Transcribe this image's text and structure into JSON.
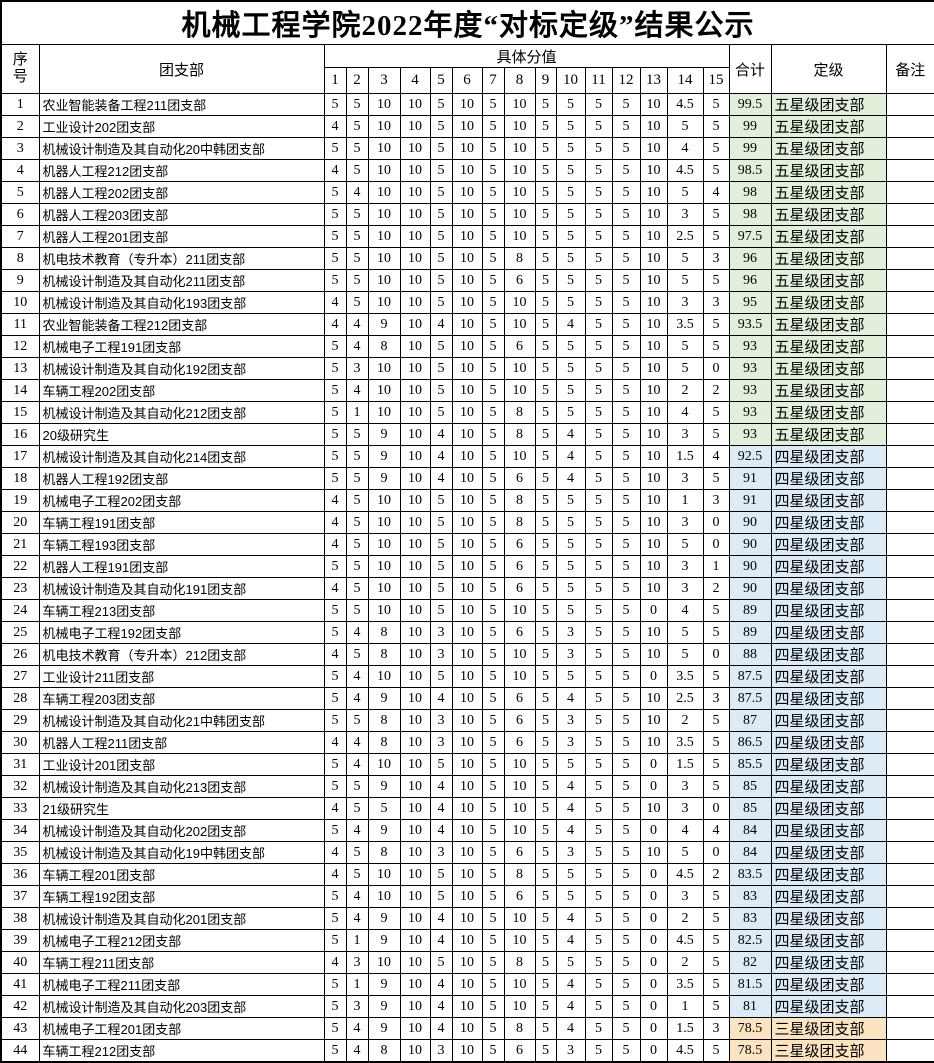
{
  "title": "机械工程学院2022年度“对标定级”结果公示",
  "table": {
    "headers": {
      "index": "序\n号",
      "branch": "团支部",
      "scores_group": "具体分值",
      "score_cols": [
        "1",
        "2",
        "3",
        "4",
        "5",
        "6",
        "7",
        "8",
        "9",
        "10",
        "11",
        "12",
        "13",
        "14",
        "15"
      ],
      "total": "合计",
      "rating": "定级",
      "remark": "备注"
    },
    "rating_colors": {
      "五星级团支部": "#e2efda",
      "四星级团支部": "#ddebf7",
      "三星级团支部": "#fce4c2"
    },
    "rows": [
      {
        "no": 1,
        "branch": "农业智能装备工程211团支部",
        "scores": [
          5,
          5,
          10,
          10,
          5,
          10,
          5,
          10,
          5,
          5,
          5,
          5,
          10,
          4.5,
          5
        ],
        "total": 99.5,
        "rating": "五星级团支部",
        "remark": ""
      },
      {
        "no": 2,
        "branch": "工业设计202团支部",
        "scores": [
          4,
          5,
          10,
          10,
          5,
          10,
          5,
          10,
          5,
          5,
          5,
          5,
          10,
          5,
          5
        ],
        "total": 99,
        "rating": "五星级团支部",
        "remark": ""
      },
      {
        "no": 3,
        "branch": "机械设计制造及其自动化20中韩团支部",
        "scores": [
          5,
          5,
          10,
          10,
          5,
          10,
          5,
          10,
          5,
          5,
          5,
          5,
          10,
          4,
          5
        ],
        "total": 99,
        "rating": "五星级团支部",
        "remark": ""
      },
      {
        "no": 4,
        "branch": "机器人工程212团支部",
        "scores": [
          4,
          5,
          10,
          10,
          5,
          10,
          5,
          10,
          5,
          5,
          5,
          5,
          10,
          4.5,
          5
        ],
        "total": 98.5,
        "rating": "五星级团支部",
        "remark": ""
      },
      {
        "no": 5,
        "branch": "机器人工程202团支部",
        "scores": [
          5,
          4,
          10,
          10,
          5,
          10,
          5,
          10,
          5,
          5,
          5,
          5,
          10,
          5,
          4
        ],
        "total": 98,
        "rating": "五星级团支部",
        "remark": ""
      },
      {
        "no": 6,
        "branch": "机器人工程203团支部",
        "scores": [
          5,
          5,
          10,
          10,
          5,
          10,
          5,
          10,
          5,
          5,
          5,
          5,
          10,
          3,
          5
        ],
        "total": 98,
        "rating": "五星级团支部",
        "remark": ""
      },
      {
        "no": 7,
        "branch": "机器人工程201团支部",
        "scores": [
          5,
          5,
          10,
          10,
          5,
          10,
          5,
          10,
          5,
          5,
          5,
          5,
          10,
          2.5,
          5
        ],
        "total": 97.5,
        "rating": "五星级团支部",
        "remark": ""
      },
      {
        "no": 8,
        "branch": "机电技术教育（专升本）211团支部",
        "scores": [
          5,
          5,
          10,
          10,
          5,
          10,
          5,
          8,
          5,
          5,
          5,
          5,
          10,
          5,
          3
        ],
        "total": 96,
        "rating": "五星级团支部",
        "remark": ""
      },
      {
        "no": 9,
        "branch": "机械设计制造及其自动化211团支部",
        "scores": [
          5,
          5,
          10,
          10,
          5,
          10,
          5,
          6,
          5,
          5,
          5,
          5,
          10,
          5,
          5
        ],
        "total": 96,
        "rating": "五星级团支部",
        "remark": ""
      },
      {
        "no": 10,
        "branch": "机械设计制造及其自动化193团支部",
        "scores": [
          4,
          5,
          10,
          10,
          5,
          10,
          5,
          10,
          5,
          5,
          5,
          5,
          10,
          3,
          3
        ],
        "total": 95,
        "rating": "五星级团支部",
        "remark": ""
      },
      {
        "no": 11,
        "branch": "农业智能装备工程212团支部",
        "scores": [
          4,
          4,
          9,
          10,
          4,
          10,
          5,
          10,
          5,
          4,
          5,
          5,
          10,
          3.5,
          5
        ],
        "total": 93.5,
        "rating": "五星级团支部",
        "remark": ""
      },
      {
        "no": 12,
        "branch": "机械电子工程191团支部",
        "scores": [
          5,
          4,
          8,
          10,
          5,
          10,
          5,
          6,
          5,
          5,
          5,
          5,
          10,
          5,
          5
        ],
        "total": 93,
        "rating": "五星级团支部",
        "remark": ""
      },
      {
        "no": 13,
        "branch": "机械设计制造及其自动化192团支部",
        "scores": [
          5,
          3,
          10,
          10,
          5,
          10,
          5,
          10,
          5,
          5,
          5,
          5,
          10,
          5,
          0
        ],
        "total": 93,
        "rating": "五星级团支部",
        "remark": ""
      },
      {
        "no": 14,
        "branch": "车辆工程202团支部",
        "scores": [
          5,
          4,
          10,
          10,
          5,
          10,
          5,
          10,
          5,
          5,
          5,
          5,
          10,
          2,
          2
        ],
        "total": 93,
        "rating": "五星级团支部",
        "remark": ""
      },
      {
        "no": 15,
        "branch": "机械设计制造及其自动化212团支部",
        "scores": [
          5,
          1,
          10,
          10,
          5,
          10,
          5,
          8,
          5,
          5,
          5,
          5,
          10,
          4,
          5
        ],
        "total": 93,
        "rating": "五星级团支部",
        "remark": ""
      },
      {
        "no": 16,
        "branch": "20级研究生",
        "scores": [
          5,
          5,
          9,
          10,
          4,
          10,
          5,
          8,
          5,
          4,
          5,
          5,
          10,
          3,
          5
        ],
        "total": 93,
        "rating": "五星级团支部",
        "remark": ""
      },
      {
        "no": 17,
        "branch": "机械设计制造及其自动化214团支部",
        "scores": [
          5,
          5,
          9,
          10,
          4,
          10,
          5,
          10,
          5,
          4,
          5,
          5,
          10,
          1.5,
          4
        ],
        "total": 92.5,
        "rating": "四星级团支部",
        "remark": ""
      },
      {
        "no": 18,
        "branch": "机器人工程192团支部",
        "scores": [
          5,
          5,
          9,
          10,
          4,
          10,
          5,
          6,
          5,
          4,
          5,
          5,
          10,
          3,
          5
        ],
        "total": 91,
        "rating": "四星级团支部",
        "remark": ""
      },
      {
        "no": 19,
        "branch": "机械电子工程202团支部",
        "scores": [
          4,
          5,
          10,
          10,
          5,
          10,
          5,
          8,
          5,
          5,
          5,
          5,
          10,
          1,
          3
        ],
        "total": 91,
        "rating": "四星级团支部",
        "remark": ""
      },
      {
        "no": 20,
        "branch": "车辆工程191团支部",
        "scores": [
          4,
          5,
          10,
          10,
          5,
          10,
          5,
          8,
          5,
          5,
          5,
          5,
          10,
          3,
          0
        ],
        "total": 90,
        "rating": "四星级团支部",
        "remark": ""
      },
      {
        "no": 21,
        "branch": "车辆工程193团支部",
        "scores": [
          4,
          5,
          10,
          10,
          5,
          10,
          5,
          6,
          5,
          5,
          5,
          5,
          10,
          5,
          0
        ],
        "total": 90,
        "rating": "四星级团支部",
        "remark": ""
      },
      {
        "no": 22,
        "branch": "机器人工程191团支部",
        "scores": [
          5,
          5,
          10,
          10,
          5,
          10,
          5,
          6,
          5,
          5,
          5,
          5,
          10,
          3,
          1
        ],
        "total": 90,
        "rating": "四星级团支部",
        "remark": ""
      },
      {
        "no": 23,
        "branch": "机械设计制造及其自动化191团支部",
        "scores": [
          4,
          5,
          10,
          10,
          5,
          10,
          5,
          6,
          5,
          5,
          5,
          5,
          10,
          3,
          2
        ],
        "total": 90,
        "rating": "四星级团支部",
        "remark": ""
      },
      {
        "no": 24,
        "branch": "车辆工程213团支部",
        "scores": [
          5,
          5,
          10,
          10,
          5,
          10,
          5,
          10,
          5,
          5,
          5,
          5,
          0,
          4,
          5
        ],
        "total": 89,
        "rating": "四星级团支部",
        "remark": ""
      },
      {
        "no": 25,
        "branch": "机械电子工程192团支部",
        "scores": [
          5,
          4,
          8,
          10,
          3,
          10,
          5,
          6,
          5,
          3,
          5,
          5,
          10,
          5,
          5
        ],
        "total": 89,
        "rating": "四星级团支部",
        "remark": ""
      },
      {
        "no": 26,
        "branch": "机电技术教育（专升本）212团支部",
        "scores": [
          4,
          5,
          8,
          10,
          3,
          10,
          5,
          10,
          5,
          3,
          5,
          5,
          10,
          5,
          0
        ],
        "total": 88,
        "rating": "四星级团支部",
        "remark": ""
      },
      {
        "no": 27,
        "branch": "工业设计211团支部",
        "scores": [
          5,
          4,
          10,
          10,
          5,
          10,
          5,
          10,
          5,
          5,
          5,
          5,
          0,
          3.5,
          5
        ],
        "total": 87.5,
        "rating": "四星级团支部",
        "remark": ""
      },
      {
        "no": 28,
        "branch": "车辆工程203团支部",
        "scores": [
          5,
          4,
          9,
          10,
          4,
          10,
          5,
          6,
          5,
          4,
          5,
          5,
          10,
          2.5,
          3
        ],
        "total": 87.5,
        "rating": "四星级团支部",
        "remark": ""
      },
      {
        "no": 29,
        "branch": "机械设计制造及其自动化21中韩团支部",
        "scores": [
          5,
          5,
          8,
          10,
          3,
          10,
          5,
          6,
          5,
          3,
          5,
          5,
          10,
          2,
          5
        ],
        "total": 87,
        "rating": "四星级团支部",
        "remark": ""
      },
      {
        "no": 30,
        "branch": "机器人工程211团支部",
        "scores": [
          4,
          4,
          8,
          10,
          3,
          10,
          5,
          6,
          5,
          3,
          5,
          5,
          10,
          3.5,
          5
        ],
        "total": 86.5,
        "rating": "四星级团支部",
        "remark": ""
      },
      {
        "no": 31,
        "branch": "工业设计201团支部",
        "scores": [
          5,
          4,
          10,
          10,
          5,
          10,
          5,
          10,
          5,
          5,
          5,
          5,
          0,
          1.5,
          5
        ],
        "total": 85.5,
        "rating": "四星级团支部",
        "remark": ""
      },
      {
        "no": 32,
        "branch": "机械设计制造及其自动化213团支部",
        "scores": [
          5,
          5,
          9,
          10,
          4,
          10,
          5,
          10,
          5,
          4,
          5,
          5,
          0,
          3,
          5
        ],
        "total": 85,
        "rating": "四星级团支部",
        "remark": ""
      },
      {
        "no": 33,
        "branch": "21级研究生",
        "scores": [
          4,
          5,
          5,
          10,
          4,
          10,
          5,
          10,
          5,
          4,
          5,
          5,
          10,
          3,
          0
        ],
        "total": 85,
        "rating": "四星级团支部",
        "remark": ""
      },
      {
        "no": 34,
        "branch": "机械设计制造及其自动化202团支部",
        "scores": [
          5,
          4,
          9,
          10,
          4,
          10,
          5,
          10,
          5,
          4,
          5,
          5,
          0,
          4,
          4
        ],
        "total": 84,
        "rating": "四星级团支部",
        "remark": ""
      },
      {
        "no": 35,
        "branch": "机械设计制造及其自动化19中韩团支部",
        "scores": [
          4,
          5,
          8,
          10,
          3,
          10,
          5,
          6,
          5,
          3,
          5,
          5,
          10,
          5,
          0
        ],
        "total": 84,
        "rating": "四星级团支部",
        "remark": ""
      },
      {
        "no": 36,
        "branch": "车辆工程201团支部",
        "scores": [
          4,
          5,
          10,
          10,
          5,
          10,
          5,
          8,
          5,
          5,
          5,
          5,
          0,
          4.5,
          2
        ],
        "total": 83.5,
        "rating": "四星级团支部",
        "remark": ""
      },
      {
        "no": 37,
        "branch": "车辆工程192团支部",
        "scores": [
          5,
          4,
          10,
          10,
          5,
          10,
          5,
          6,
          5,
          5,
          5,
          5,
          0,
          3,
          5
        ],
        "total": 83,
        "rating": "四星级团支部",
        "remark": ""
      },
      {
        "no": 38,
        "branch": "机械设计制造及其自动化201团支部",
        "scores": [
          5,
          4,
          9,
          10,
          4,
          10,
          5,
          10,
          5,
          4,
          5,
          5,
          0,
          2,
          5
        ],
        "total": 83,
        "rating": "四星级团支部",
        "remark": ""
      },
      {
        "no": 39,
        "branch": "机械电子工程212团支部",
        "scores": [
          5,
          1,
          9,
          10,
          4,
          10,
          5,
          10,
          5,
          4,
          5,
          5,
          0,
          4.5,
          5
        ],
        "total": 82.5,
        "rating": "四星级团支部",
        "remark": ""
      },
      {
        "no": 40,
        "branch": "车辆工程211团支部",
        "scores": [
          4,
          3,
          10,
          10,
          5,
          10,
          5,
          8,
          5,
          5,
          5,
          5,
          0,
          2,
          5
        ],
        "total": 82,
        "rating": "四星级团支部",
        "remark": ""
      },
      {
        "no": 41,
        "branch": "机械电子工程211团支部",
        "scores": [
          5,
          1,
          9,
          10,
          4,
          10,
          5,
          10,
          5,
          4,
          5,
          5,
          0,
          3.5,
          5
        ],
        "total": 81.5,
        "rating": "四星级团支部",
        "remark": ""
      },
      {
        "no": 42,
        "branch": "机械设计制造及其自动化203团支部",
        "scores": [
          5,
          3,
          9,
          10,
          4,
          10,
          5,
          10,
          5,
          4,
          5,
          5,
          0,
          1,
          5
        ],
        "total": 81,
        "rating": "四星级团支部",
        "remark": ""
      },
      {
        "no": 43,
        "branch": "机械电子工程201团支部",
        "scores": [
          5,
          4,
          9,
          10,
          4,
          10,
          5,
          8,
          5,
          4,
          5,
          5,
          0,
          1.5,
          3
        ],
        "total": 78.5,
        "rating": "三星级团支部",
        "remark": ""
      },
      {
        "no": 44,
        "branch": "车辆工程212团支部",
        "scores": [
          5,
          4,
          8,
          10,
          3,
          10,
          5,
          6,
          5,
          3,
          5,
          5,
          0,
          4.5,
          5
        ],
        "total": 78.5,
        "rating": "三星级团支部",
        "remark": ""
      }
    ]
  }
}
